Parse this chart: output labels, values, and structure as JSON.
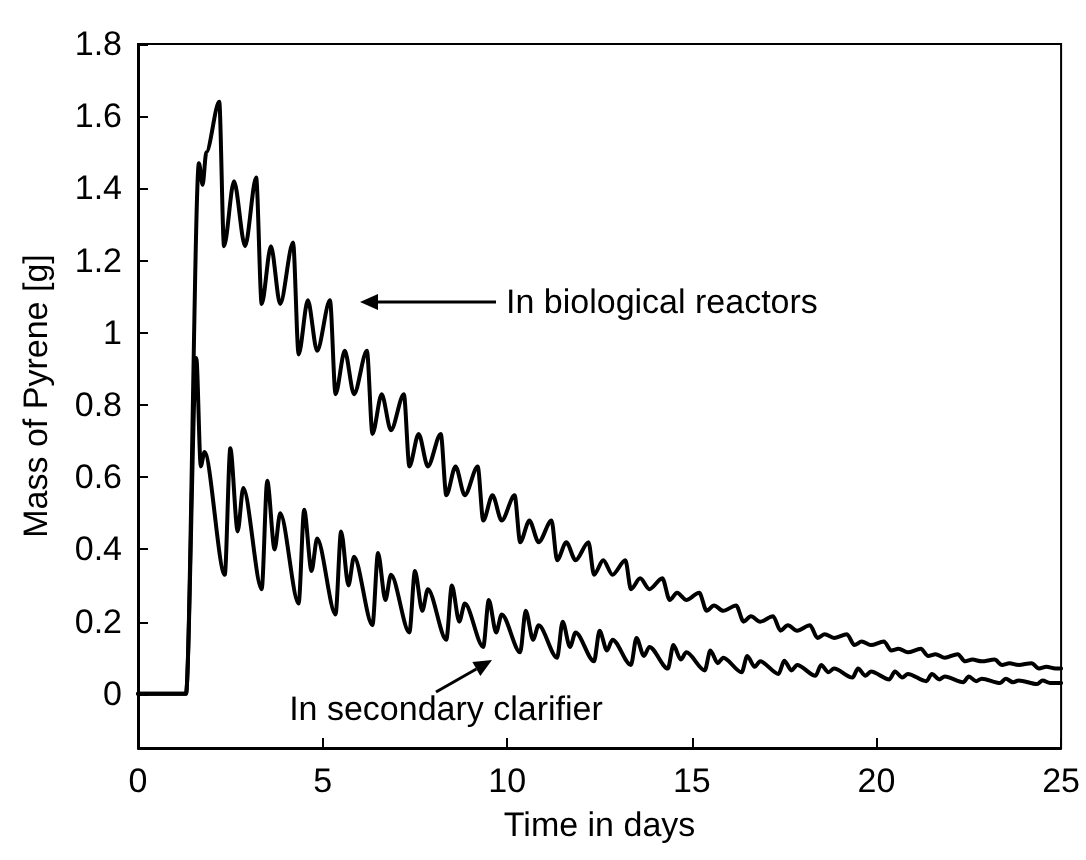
{
  "chart_data": {
    "type": "line",
    "xlabel": "Time in days",
    "ylabel": "Mass of Pyrene [g]",
    "xlim": [
      0,
      25
    ],
    "xticks": [
      0,
      5,
      10,
      15,
      20,
      25
    ],
    "ylim": [
      -0.15,
      1.8
    ],
    "yticks": [
      0,
      0.2,
      0.4,
      0.6,
      0.8,
      1,
      1.2,
      1.4,
      1.6,
      1.8
    ],
    "grid": false,
    "marker": "none",
    "line_style": "solid",
    "annotations": [
      "In biological reactors",
      "In secondary clarifier"
    ],
    "series": [
      {
        "color": "#000000",
        "x": [
          0,
          1.3,
          1.65,
          1.75,
          1.85,
          2.2,
          2.33,
          2.6,
          2.9,
          3.2,
          3.35,
          3.6,
          3.85,
          4.2,
          4.35,
          4.6,
          4.85,
          5.2,
          5.35,
          5.6,
          5.85,
          6.2,
          6.35,
          6.6,
          6.85,
          7.2,
          7.35,
          7.6,
          7.85,
          8.2,
          8.35,
          8.6,
          8.85,
          9.2,
          9.35,
          9.6,
          9.85,
          10.2,
          10.35,
          10.6,
          10.85,
          11.2,
          11.35,
          11.6,
          11.85,
          12.2,
          12.35,
          12.6,
          12.85,
          13.2,
          13.35,
          13.6,
          13.85,
          14.2,
          14.4,
          14.6,
          14.85,
          15.2,
          15.4,
          15.6,
          15.85,
          16.2,
          16.4,
          16.6,
          16.85,
          17.2,
          17.4,
          17.6,
          17.85,
          18.2,
          18.4,
          18.6,
          18.85,
          19.2,
          19.4,
          19.6,
          19.85,
          20.2,
          20.4,
          20.6,
          20.85,
          21.2,
          21.4,
          21.6,
          21.85,
          22.2,
          22.4,
          22.6,
          22.85,
          23.2,
          23.4,
          23.6,
          23.85,
          24.2,
          24.4,
          24.6,
          24.85,
          25
        ],
        "values": [
          0,
          0,
          1.47,
          1.41,
          1.5,
          1.64,
          1.24,
          1.42,
          1.24,
          1.43,
          1.08,
          1.24,
          1.08,
          1.25,
          0.94,
          1.09,
          0.95,
          1.09,
          0.83,
          0.95,
          0.83,
          0.95,
          0.72,
          0.83,
          0.73,
          0.83,
          0.63,
          0.72,
          0.63,
          0.72,
          0.55,
          0.63,
          0.55,
          0.63,
          0.48,
          0.55,
          0.48,
          0.55,
          0.42,
          0.48,
          0.42,
          0.48,
          0.37,
          0.42,
          0.37,
          0.42,
          0.33,
          0.37,
          0.33,
          0.37,
          0.29,
          0.32,
          0.29,
          0.32,
          0.26,
          0.28,
          0.26,
          0.28,
          0.23,
          0.245,
          0.23,
          0.245,
          0.2,
          0.215,
          0.2,
          0.215,
          0.175,
          0.19,
          0.175,
          0.19,
          0.155,
          0.165,
          0.155,
          0.165,
          0.135,
          0.145,
          0.135,
          0.145,
          0.12,
          0.125,
          0.115,
          0.125,
          0.105,
          0.11,
          0.1,
          0.11,
          0.09,
          0.095,
          0.09,
          0.095,
          0.08,
          0.085,
          0.08,
          0.085,
          0.07,
          0.075,
          0.07,
          0.07
        ]
      },
      {
        "color": "#000000",
        "x": [
          0,
          1.3,
          1.58,
          1.7,
          1.8,
          2.35,
          2.5,
          2.7,
          2.85,
          3.35,
          3.5,
          3.7,
          3.85,
          4.35,
          4.5,
          4.7,
          4.85,
          5.35,
          5.5,
          5.7,
          5.85,
          6.35,
          6.5,
          6.7,
          6.85,
          7.35,
          7.5,
          7.7,
          7.85,
          8.35,
          8.5,
          8.7,
          8.85,
          9.35,
          9.5,
          9.7,
          9.85,
          10.35,
          10.5,
          10.7,
          10.85,
          11.35,
          11.5,
          11.7,
          11.85,
          12.35,
          12.5,
          12.7,
          12.85,
          13.35,
          13.5,
          13.7,
          13.85,
          14.35,
          14.5,
          14.7,
          14.85,
          15.35,
          15.5,
          15.7,
          15.85,
          16.35,
          16.5,
          16.7,
          16.85,
          17.35,
          17.5,
          17.7,
          17.85,
          18.35,
          18.5,
          18.7,
          18.85,
          19.35,
          19.5,
          19.7,
          19.85,
          20.35,
          20.5,
          20.7,
          20.85,
          21.35,
          21.5,
          21.7,
          21.85,
          22.35,
          22.5,
          22.7,
          22.85,
          23.35,
          23.5,
          23.7,
          23.85,
          24.35,
          24.5,
          24.7,
          25
        ],
        "values": [
          0,
          0,
          0.93,
          0.63,
          0.67,
          0.33,
          0.68,
          0.45,
          0.57,
          0.29,
          0.59,
          0.4,
          0.5,
          0.25,
          0.51,
          0.34,
          0.43,
          0.22,
          0.45,
          0.3,
          0.38,
          0.19,
          0.39,
          0.26,
          0.33,
          0.17,
          0.34,
          0.23,
          0.29,
          0.15,
          0.3,
          0.2,
          0.25,
          0.13,
          0.26,
          0.17,
          0.22,
          0.115,
          0.23,
          0.15,
          0.19,
          0.1,
          0.2,
          0.13,
          0.17,
          0.09,
          0.175,
          0.12,
          0.15,
          0.08,
          0.155,
          0.105,
          0.13,
          0.07,
          0.135,
          0.095,
          0.115,
          0.065,
          0.12,
          0.085,
          0.1,
          0.06,
          0.105,
          0.075,
          0.09,
          0.055,
          0.092,
          0.065,
          0.08,
          0.05,
          0.08,
          0.06,
          0.07,
          0.045,
          0.07,
          0.05,
          0.062,
          0.04,
          0.062,
          0.045,
          0.055,
          0.035,
          0.055,
          0.04,
          0.048,
          0.032,
          0.048,
          0.035,
          0.042,
          0.03,
          0.042,
          0.032,
          0.037,
          0.027,
          0.037,
          0.03,
          0.03
        ]
      }
    ]
  }
}
